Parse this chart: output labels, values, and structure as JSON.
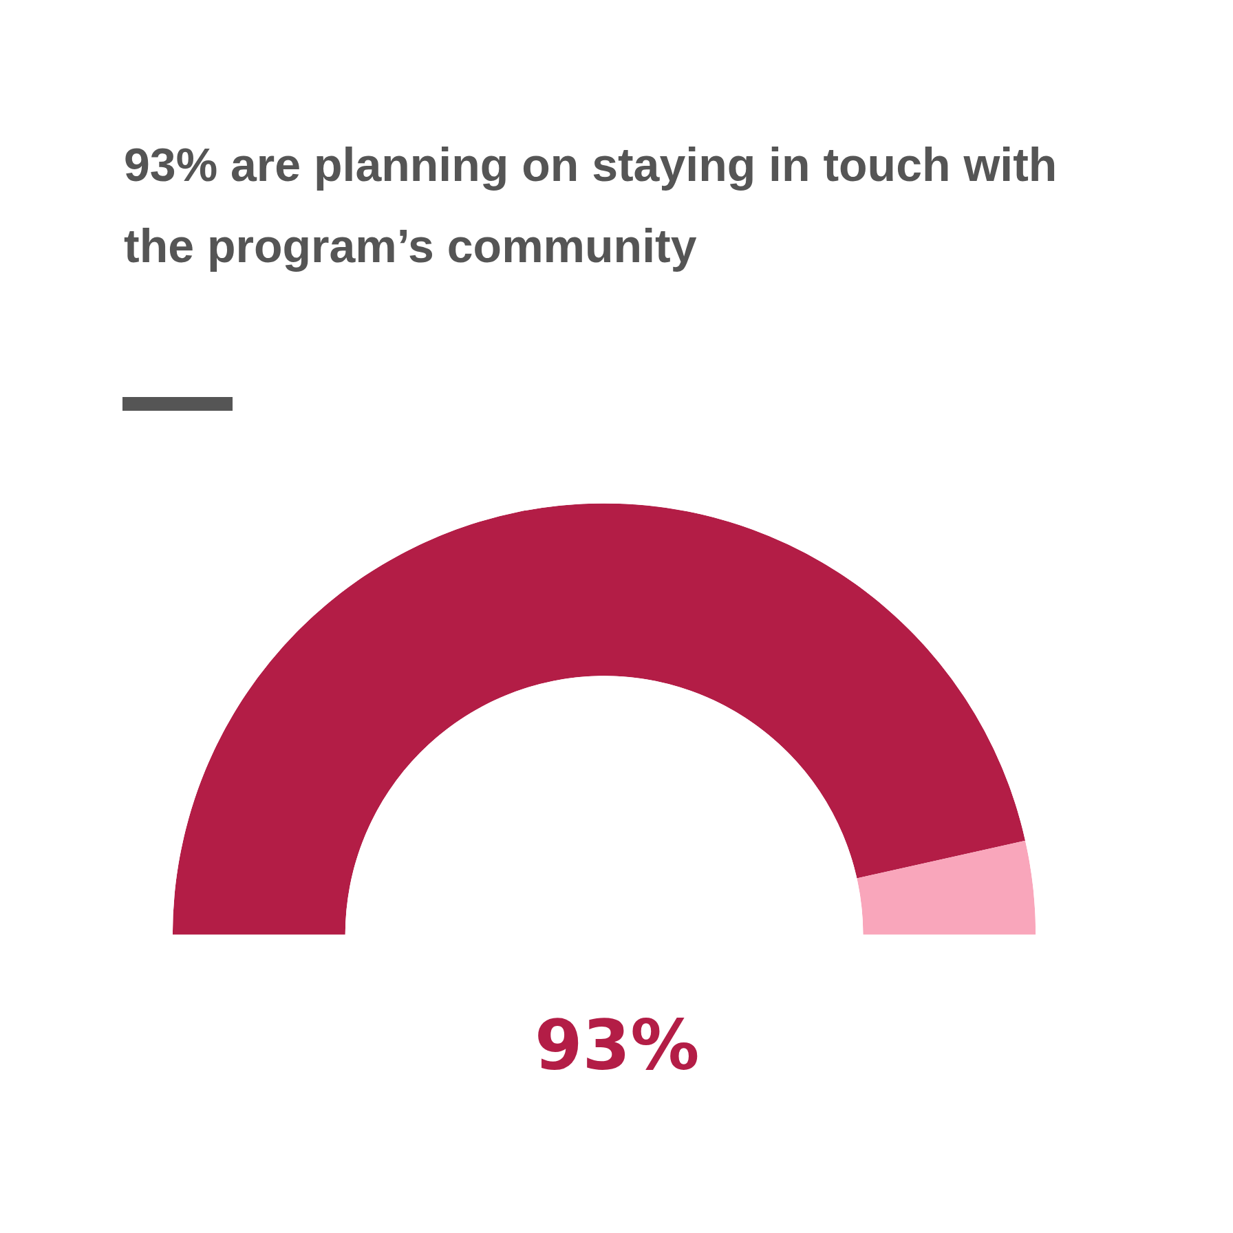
{
  "chart_data": {
    "type": "donut",
    "title": "93% are planning on staying in touch with the program’s community",
    "categories": [
      null,
      null
    ],
    "values": [
      93,
      7
    ],
    "colors": [
      "#b31d46",
      "#f9a6bb"
    ],
    "annotations": [
      "93%"
    ],
    "legend": false
  }
}
